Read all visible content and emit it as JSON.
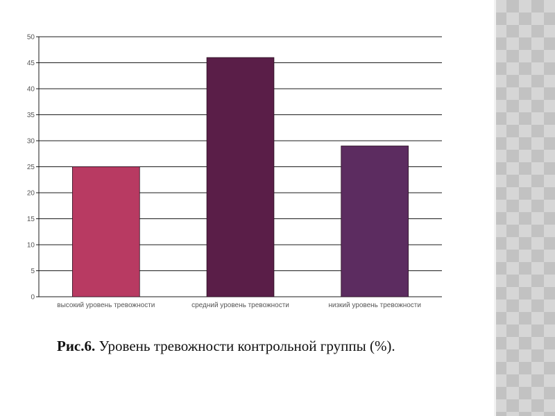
{
  "chart_data": {
    "type": "bar",
    "categories": [
      "высокий уровень тревожности",
      "средний уровень тревожности",
      "низкий уровень тревожности"
    ],
    "values": [
      25,
      46,
      29
    ],
    "colors": [
      "#b83a62",
      "#5a1e48",
      "#5c2c60"
    ],
    "yticks": [
      "0",
      "5",
      "10",
      "15",
      "20",
      "25",
      "30",
      "35",
      "40",
      "45",
      "50"
    ],
    "ylim": [
      0,
      50
    ],
    "grid": true,
    "legend": "none"
  },
  "caption": {
    "label": "Рис.6.",
    "text": " Уровень  тревожности контрольной  группы (%)."
  },
  "colors": {
    "gridline": "#1a1a1a",
    "tick_text": "#555555",
    "side_pattern": "#c8c8c8"
  }
}
